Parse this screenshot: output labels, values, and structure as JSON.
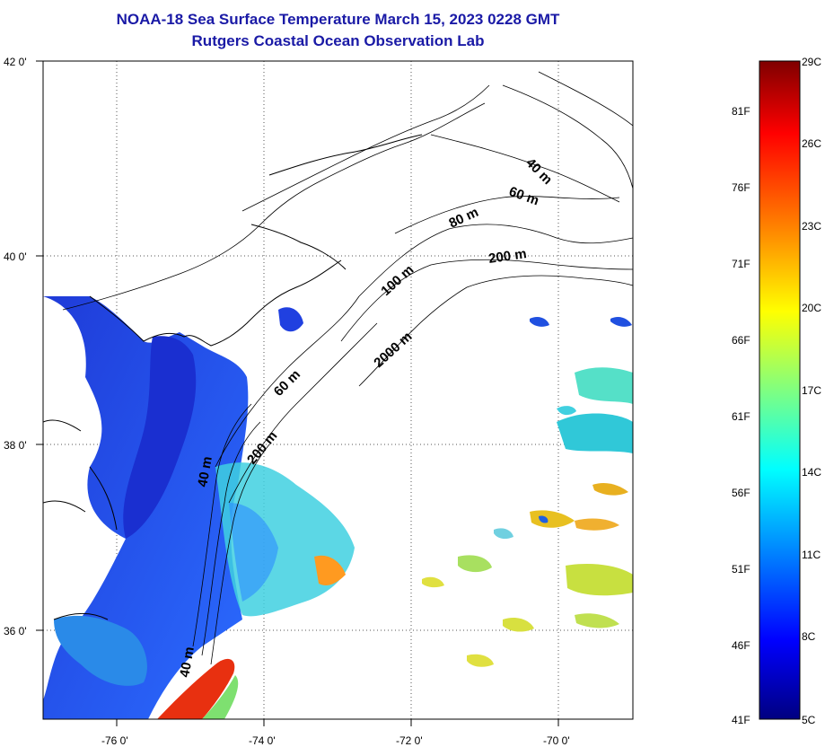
{
  "map": {
    "title_line1": "NOAA-18 Sea Surface Temperature March 15, 2023 0228 GMT",
    "title_line2": "Rutgers Coastal Ocean Observation Lab",
    "lat_labels": [
      "42 0'",
      "40 0'",
      "38 0'",
      "36 0'"
    ],
    "lon_labels": [
      "-76 0'",
      "-74 0'",
      "-72 0'",
      "-70 0'"
    ],
    "contour_labels": [
      "40 m",
      "60 m",
      "80 m",
      "200 m",
      "100 m",
      "2000 m",
      "60 m",
      "200 m",
      "40 m",
      "40 m"
    ]
  },
  "colorbar": {
    "fahrenheit_labels": [
      "81F",
      "76F",
      "71F",
      "66F",
      "61F",
      "56F",
      "51F",
      "46F",
      "41F"
    ],
    "celsius_labels": [
      "29C",
      "26C",
      "23C",
      "20C",
      "17C",
      "14C",
      "11C",
      "8C",
      "5C"
    ],
    "colors": [
      "#800000",
      "#ff0000",
      "#ff8000",
      "#ffff00",
      "#80ff80",
      "#00ffff",
      "#0080ff",
      "#0000ff",
      "#000080"
    ]
  }
}
